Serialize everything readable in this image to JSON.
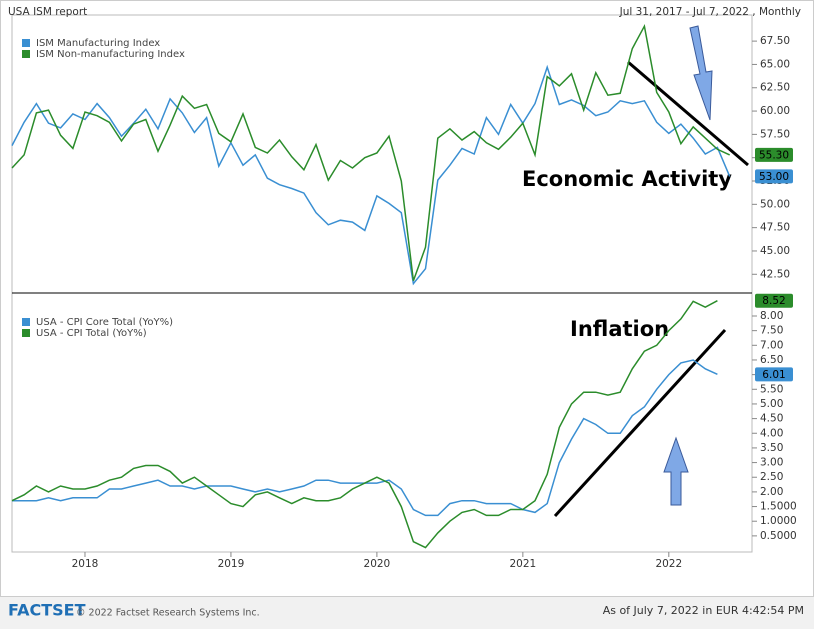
{
  "chart_data": [
    {
      "type": "line",
      "title": "USA ISM report",
      "subtitle": "Jul 31, 2017 - Jul 7, 2022 , Monthly",
      "annotations": [
        "Economic Activity"
      ],
      "x": [
        2017.5,
        2017.583,
        2017.667,
        2017.75,
        2017.833,
        2017.917,
        2018,
        2018.083,
        2018.167,
        2018.25,
        2018.333,
        2018.417,
        2018.5,
        2018.583,
        2018.667,
        2018.75,
        2018.833,
        2018.917,
        2019,
        2019.083,
        2019.167,
        2019.25,
        2019.333,
        2019.417,
        2019.5,
        2019.583,
        2019.667,
        2019.75,
        2019.833,
        2019.917,
        2020,
        2020.083,
        2020.167,
        2020.25,
        2020.333,
        2020.417,
        2020.5,
        2020.583,
        2020.667,
        2020.75,
        2020.833,
        2020.917,
        2021,
        2021.083,
        2021.167,
        2021.25,
        2021.333,
        2021.417,
        2021.5,
        2021.583,
        2021.667,
        2021.75,
        2021.833,
        2021.917,
        2022,
        2022.083,
        2022.167,
        2022.25,
        2022.333,
        2022.417
      ],
      "xlim": [
        2017.5,
        2022.57
      ],
      "ylim": [
        40.6,
        70.3
      ],
      "yticks": [
        {
          "value": 42.5,
          "label": "42.50"
        },
        {
          "value": 45,
          "label": "45.00"
        },
        {
          "value": 47.5,
          "label": "47.50"
        },
        {
          "value": 50,
          "label": "50.00"
        },
        {
          "value": 52.5,
          "label": "52.50"
        },
        {
          "value": 55,
          "label": "55.00"
        },
        {
          "value": 57.5,
          "label": "57.50"
        },
        {
          "value": 60,
          "label": "60.00"
        },
        {
          "value": 62.5,
          "label": "62.50"
        },
        {
          "value": 65,
          "label": "65.00"
        },
        {
          "value": 67.5,
          "label": "67.50"
        }
      ],
      "series": [
        {
          "name": "ISM Manufacturing Index",
          "color": "#3a8fd2",
          "end_label": "53.00",
          "values": [
            56.3,
            58.8,
            60.8,
            58.7,
            58.2,
            59.7,
            59.1,
            60.8,
            59.3,
            57.3,
            58.7,
            60.2,
            58.1,
            61.3,
            59.8,
            57.7,
            59.3,
            54.1,
            56.6,
            54.2,
            55.3,
            52.8,
            52.1,
            51.7,
            51.2,
            49.1,
            47.8,
            48.3,
            48.1,
            47.2,
            50.9,
            50.1,
            49.1,
            41.5,
            43.1,
            52.6,
            54.2,
            56.0,
            55.4,
            59.3,
            57.5,
            60.7,
            58.7,
            60.8,
            64.7,
            60.7,
            61.2,
            60.6,
            59.5,
            59.9,
            61.1,
            60.8,
            61.1,
            58.8,
            57.6,
            58.6,
            57.1,
            55.4,
            56.1,
            53.0
          ]
        },
        {
          "name": "ISM Non-manufacturing Index",
          "color": "#2b8c2b",
          "end_label": "55.30",
          "values": [
            53.9,
            55.3,
            59.8,
            60.1,
            57.4,
            56.0,
            59.9,
            59.5,
            58.8,
            56.8,
            58.6,
            59.1,
            55.7,
            58.5,
            61.6,
            60.3,
            60.7,
            57.6,
            56.7,
            59.7,
            56.1,
            55.5,
            56.9,
            55.1,
            53.7,
            56.4,
            52.6,
            54.7,
            53.9,
            55.0,
            55.5,
            57.3,
            52.5,
            41.8,
            45.4,
            57.1,
            58.1,
            56.9,
            57.8,
            56.6,
            55.9,
            57.2,
            58.7,
            55.3,
            63.7,
            62.7,
            64.0,
            60.1,
            64.1,
            61.7,
            61.9,
            66.7,
            69.1,
            62.0,
            59.9,
            56.5,
            58.3,
            57.1,
            55.9,
            55.3
          ]
        }
      ]
    },
    {
      "type": "line",
      "annotations": [
        "Inflation"
      ],
      "x": [
        2017.5,
        2017.583,
        2017.667,
        2017.75,
        2017.833,
        2017.917,
        2018,
        2018.083,
        2018.167,
        2018.25,
        2018.333,
        2018.417,
        2018.5,
        2018.583,
        2018.667,
        2018.75,
        2018.833,
        2018.917,
        2019,
        2019.083,
        2019.167,
        2019.25,
        2019.333,
        2019.417,
        2019.5,
        2019.583,
        2019.667,
        2019.75,
        2019.833,
        2019.917,
        2020,
        2020.083,
        2020.167,
        2020.25,
        2020.333,
        2020.417,
        2020.5,
        2020.583,
        2020.667,
        2020.75,
        2020.833,
        2020.917,
        2021,
        2021.083,
        2021.167,
        2021.25,
        2021.333,
        2021.417,
        2021.5,
        2021.583,
        2021.667,
        2021.75,
        2021.833,
        2021.917,
        2022,
        2022.083,
        2022.167,
        2022.25,
        2022.333
      ],
      "xlim": [
        2017.5,
        2022.57
      ],
      "xticks": [
        2018,
        2019,
        2020,
        2021,
        2022
      ],
      "ylim": [
        -0.05,
        8.75
      ],
      "yticks": [
        {
          "value": 0.5,
          "label": "0.5000"
        },
        {
          "value": 1,
          "label": "1.0000"
        },
        {
          "value": 1.5,
          "label": "1.5000"
        },
        {
          "value": 2,
          "label": "2.00"
        },
        {
          "value": 2.5,
          "label": "2.50"
        },
        {
          "value": 3,
          "label": "3.00"
        },
        {
          "value": 3.5,
          "label": "3.50"
        },
        {
          "value": 4,
          "label": "4.00"
        },
        {
          "value": 4.5,
          "label": "4.50"
        },
        {
          "value": 5,
          "label": "5.00"
        },
        {
          "value": 5.5,
          "label": "5.50"
        },
        {
          "value": 6,
          "label": "6.00"
        },
        {
          "value": 6.5,
          "label": "6.50"
        },
        {
          "value": 7,
          "label": "7.00"
        },
        {
          "value": 7.5,
          "label": "7.50"
        },
        {
          "value": 8,
          "label": "8.00"
        }
      ],
      "series": [
        {
          "name": "USA - CPI Core Total (YoY%)",
          "color": "#3a8fd2",
          "end_label": "6.01",
          "values": [
            1.7,
            1.7,
            1.7,
            1.8,
            1.7,
            1.8,
            1.8,
            1.8,
            2.1,
            2.1,
            2.2,
            2.3,
            2.4,
            2.2,
            2.2,
            2.1,
            2.2,
            2.2,
            2.2,
            2.1,
            2.0,
            2.1,
            2.0,
            2.1,
            2.2,
            2.4,
            2.4,
            2.3,
            2.3,
            2.3,
            2.3,
            2.4,
            2.1,
            1.4,
            1.2,
            1.2,
            1.6,
            1.7,
            1.7,
            1.6,
            1.6,
            1.6,
            1.4,
            1.3,
            1.6,
            3.0,
            3.8,
            4.5,
            4.3,
            4.0,
            4.0,
            4.6,
            4.9,
            5.5,
            6.0,
            6.4,
            6.5,
            6.2,
            6.01
          ]
        },
        {
          "name": "USA - CPI Total (YoY%)",
          "color": "#2b8c2b",
          "end_label": "8.52",
          "values": [
            1.7,
            1.9,
            2.2,
            2.0,
            2.2,
            2.1,
            2.1,
            2.2,
            2.4,
            2.5,
            2.8,
            2.9,
            2.9,
            2.7,
            2.3,
            2.5,
            2.2,
            1.9,
            1.6,
            1.5,
            1.9,
            2.0,
            1.8,
            1.6,
            1.8,
            1.7,
            1.7,
            1.8,
            2.1,
            2.3,
            2.5,
            2.3,
            1.5,
            0.3,
            0.1,
            0.6,
            1.0,
            1.3,
            1.4,
            1.2,
            1.2,
            1.4,
            1.4,
            1.7,
            2.6,
            4.2,
            5.0,
            5.4,
            5.4,
            5.3,
            5.4,
            6.2,
            6.8,
            7.0,
            7.5,
            7.9,
            8.5,
            8.3,
            8.52
          ]
        }
      ]
    }
  ],
  "footer": {
    "logo": "FACTSET",
    "copyright": "© 2022 Factset Research Systems Inc.",
    "asof": "As of July 7, 2022 in EUR 4:42:54 PM"
  }
}
